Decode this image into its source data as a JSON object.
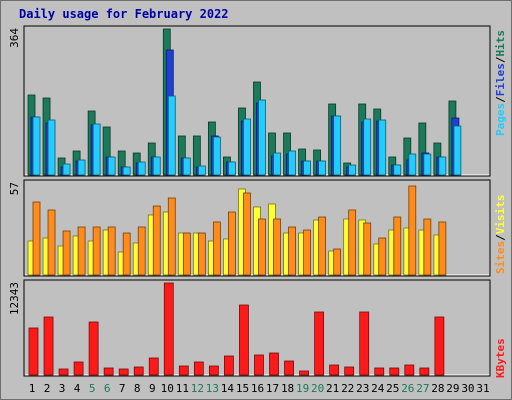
{
  "title": "Daily usage for February 2022",
  "colors": {
    "hits": "#1a7a5a",
    "files": "#1f3fd6",
    "pages": "#22ccff",
    "visits": "#ffff33",
    "sites": "#ff8c1a",
    "kbytes": "#ff1a1a",
    "weekend_day": "#1a7a5a",
    "weekday": "#000000"
  },
  "legend": {
    "pages": "Pages",
    "files": "Files",
    "hits": "Hits",
    "sites": "Sites",
    "visits": "Visits",
    "kbytes": "KBytes",
    "separator": "/"
  },
  "chart_data": [
    {
      "type": "bar",
      "name": "hits-files-pages",
      "categories": [
        "1",
        "2",
        "3",
        "4",
        "5",
        "6",
        "7",
        "8",
        "9",
        "10",
        "11",
        "12",
        "13",
        "14",
        "15",
        "16",
        "17",
        "18",
        "19",
        "20",
        "21",
        "22",
        "23",
        "24",
        "25",
        "26",
        "27",
        "28",
        "29",
        "30",
        "31"
      ],
      "ymax_label": "364",
      "ylim": [
        0,
        364
      ],
      "series": [
        {
          "name": "Hits",
          "values": [
            200,
            192,
            42,
            60,
            160,
            120,
            60,
            56,
            80,
            364,
            96,
            98,
            132,
            44,
            168,
            232,
            104,
            104,
            64,
            62,
            178,
            30,
            178,
            164,
            46,
            92,
            130,
            80,
            184,
            0,
            0
          ]
        },
        {
          "name": "Files",
          "values": [
            144,
            130,
            20,
            34,
            124,
            44,
            20,
            30,
            46,
            312,
            42,
            20,
            98,
            32,
            134,
            180,
            48,
            52,
            34,
            36,
            146,
            20,
            132,
            134,
            26,
            38,
            54,
            44,
            142,
            0,
            0
          ]
        },
        {
          "name": "Pages",
          "values": [
            144,
            136,
            28,
            38,
            126,
            44,
            20,
            32,
            46,
            198,
            42,
            22,
            94,
            32,
            140,
            186,
            54,
            60,
            34,
            34,
            146,
            24,
            140,
            138,
            26,
            52,
            52,
            46,
            122,
            0,
            0
          ]
        }
      ]
    },
    {
      "type": "bar",
      "name": "visits-sites",
      "categories": [
        "1",
        "2",
        "3",
        "4",
        "5",
        "6",
        "7",
        "8",
        "9",
        "10",
        "11",
        "12",
        "13",
        "14",
        "15",
        "16",
        "17",
        "18",
        "19",
        "20",
        "21",
        "22",
        "23",
        "24",
        "25",
        "26",
        "27",
        "28",
        "29",
        "30",
        "31"
      ],
      "ymax_label": "57",
      "ylim": [
        0,
        57
      ],
      "series": [
        {
          "name": "Visits",
          "values": [
            21,
            23,
            18,
            24,
            21,
            28,
            14,
            20,
            37,
            39,
            26,
            26,
            21,
            22,
            53,
            42,
            44,
            26,
            26,
            34,
            15,
            35,
            34,
            19,
            28,
            29,
            28,
            25,
            0,
            0,
            0
          ]
        },
        {
          "name": "Sites",
          "values": [
            45,
            40,
            27,
            30,
            30,
            30,
            26,
            30,
            43,
            48,
            26,
            26,
            33,
            39,
            51,
            35,
            35,
            30,
            28,
            36,
            16,
            40,
            32,
            23,
            36,
            55,
            35,
            33,
            0,
            0,
            0
          ]
        }
      ]
    },
    {
      "type": "bar",
      "name": "kbytes",
      "categories": [
        "1",
        "2",
        "3",
        "4",
        "5",
        "6",
        "7",
        "8",
        "9",
        "10",
        "11",
        "12",
        "13",
        "14",
        "15",
        "16",
        "17",
        "18",
        "19",
        "20",
        "21",
        "22",
        "23",
        "24",
        "25",
        "26",
        "27",
        "28",
        "29",
        "30",
        "31"
      ],
      "ymax_label": "12343",
      "ylim": [
        0,
        12343
      ],
      "series": [
        {
          "name": "KBytes",
          "values": [
            6300,
            7800,
            800,
            1700,
            7100,
            1000,
            800,
            1100,
            2300,
            12343,
            1200,
            1800,
            1200,
            2600,
            9400,
            2700,
            3000,
            1900,
            600,
            8400,
            1300,
            1100,
            8500,
            900,
            900,
            1400,
            1000,
            7800,
            0,
            0,
            0
          ]
        }
      ]
    }
  ],
  "weekend_days": [
    "5",
    "6",
    "12",
    "13",
    "19",
    "20",
    "26",
    "27"
  ]
}
